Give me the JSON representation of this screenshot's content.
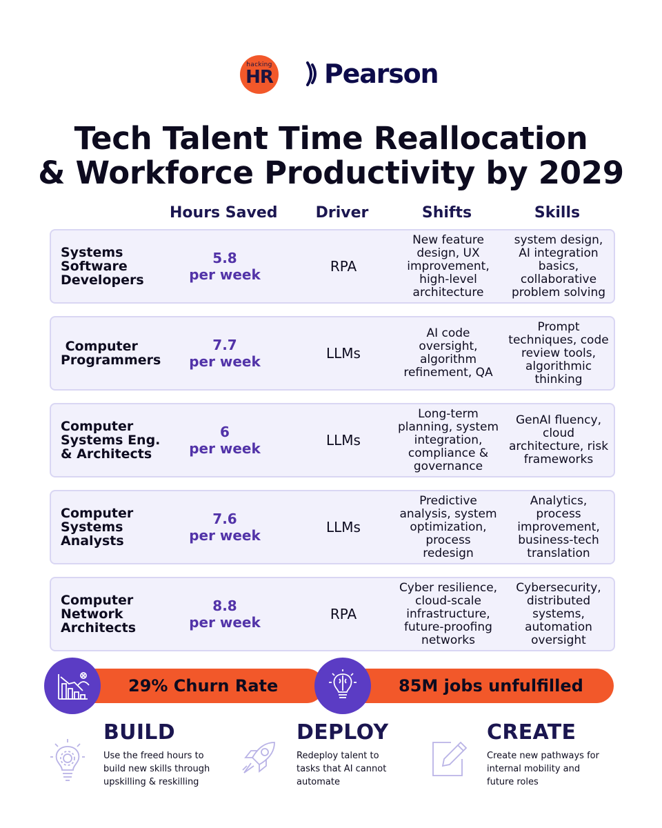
{
  "logos": {
    "hr_small": "hacking",
    "hr_big": "HR",
    "pearson": "Pearson"
  },
  "title": {
    "line1": "Tech Talent Time Reallocation",
    "line2": "& Workforce Productivity by 2029"
  },
  "columns": {
    "hours": "Hours Saved",
    "driver": "Driver",
    "shifts": "Shifts",
    "skills": "Skills"
  },
  "rows": [
    {
      "role": [
        "Systems",
        "Software",
        "Developers"
      ],
      "hours": "5.8",
      "unit": "per week",
      "driver": "RPA",
      "shifts": [
        "New feature",
        "design, UX",
        "improvement,",
        "high-level",
        "architecture"
      ],
      "skills": [
        "system design,",
        "AI integration",
        "basics,",
        "collaborative",
        "problem solving"
      ]
    },
    {
      "role": [
        " Computer",
        "Programmers"
      ],
      "hours": "7.7",
      "unit": "per week",
      "driver": "LLMs",
      "shifts": [
        "AI code",
        "oversight,",
        "algorithm",
        "refinement, QA"
      ],
      "skills": [
        "Prompt",
        "techniques, code",
        "review tools,",
        "algorithmic",
        "thinking"
      ]
    },
    {
      "role": [
        "Computer",
        "Systems Eng.",
        "& Architects"
      ],
      "hours": "6",
      "unit": "per week",
      "driver": "LLMs",
      "shifts": [
        "Long-term",
        "planning, system",
        "integration,",
        "compliance &",
        "governance"
      ],
      "skills": [
        "GenAI fluency,",
        "cloud",
        "architecture, risk",
        "frameworks"
      ]
    },
    {
      "role": [
        "Computer",
        "Systems",
        "Analysts"
      ],
      "hours": "7.6",
      "unit": "per week",
      "driver": "LLMs",
      "shifts": [
        "Predictive",
        "analysis, system",
        "optimization,",
        "process",
        "redesign"
      ],
      "skills": [
        "Analytics,",
        "process",
        "improvement,",
        "business-tech",
        "translation"
      ]
    },
    {
      "role": [
        "Computer",
        "Network",
        "Architects"
      ],
      "hours": "8.8",
      "unit": "per week",
      "driver": "RPA",
      "shifts": [
        "Cyber resilience,",
        "cloud-scale",
        "infrastructure,",
        "future-proofing",
        "networks"
      ],
      "skills": [
        "Cybersecurity,",
        "distributed",
        "systems,",
        "automation",
        "oversight"
      ]
    }
  ],
  "stats": {
    "churn": "29% Churn Rate",
    "jobs": "85M jobs unfulfilled",
    "churn_icon": "declining-chart-person-icon",
    "jobs_icon": "brain-lightbulb-icon"
  },
  "actions": [
    {
      "title": "BUILD",
      "desc": [
        "Use the freed hours to",
        "build new skills through",
        "upskilling & reskilling"
      ],
      "icon": "lightbulb-gear-icon"
    },
    {
      "title": "DEPLOY",
      "desc": [
        "Redeploy talent to",
        "tasks that AI cannot",
        "automate"
      ],
      "icon": "rocket-icon"
    },
    {
      "title": "CREATE",
      "desc": [
        "Create new pathways for",
        "internal mobility and",
        "future roles"
      ],
      "icon": "edit-square-icon"
    }
  ],
  "colors": {
    "accent_orange": "#f2582a",
    "accent_purple": "#5b3cc4",
    "navy": "#1b1650",
    "row_bg": "#f2f1fc"
  }
}
